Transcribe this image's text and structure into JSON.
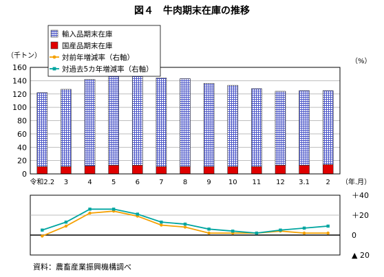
{
  "chart_data": {
    "type": "bar",
    "title": "図４　牛肉期末在庫の推移",
    "left_unit": "（千トン）",
    "right_unit": "（%）",
    "x_unit": "（年.月）",
    "categories": [
      "令和2.2",
      "3",
      "4",
      "5",
      "6",
      "7",
      "8",
      "9",
      "10",
      "11",
      "12",
      "3.1",
      "2"
    ],
    "ylim": [
      0,
      160
    ],
    "y_ticks": [
      "0",
      "20",
      "40",
      "60",
      "80",
      "100",
      "120",
      "140",
      "160"
    ],
    "y_tick_values": [
      0,
      20,
      40,
      60,
      80,
      100,
      120,
      140,
      160
    ],
    "bar_series": [
      {
        "name": "輸入品期末在庫",
        "values": [
          111,
          116,
          130,
          134,
          134,
          133,
          132,
          125,
          122,
          117,
          111,
          112,
          111
        ],
        "color": "#4a55c8"
      },
      {
        "name": "国産品期末在庫",
        "values": [
          11,
          11,
          12,
          13,
          13,
          11,
          11,
          11,
          11,
          11,
          13,
          13,
          14
        ],
        "color": "#e00000"
      }
    ],
    "rate_ylim": [
      -20,
      40
    ],
    "rate_ticks": [
      "＋40",
      "＋20",
      "0",
      "▲ 20"
    ],
    "rate_tick_values": [
      40,
      20,
      0,
      -20
    ],
    "line_series": [
      {
        "name": "対前年増減率（右軸）",
        "values": [
          -1,
          9,
          22,
          24,
          19,
          10,
          8,
          2,
          2,
          2,
          4,
          2,
          2
        ],
        "color": "#f5a000"
      },
      {
        "name": "対過去5カ年増減率（右軸）",
        "values": [
          5,
          13,
          26,
          26,
          21,
          13,
          11,
          6,
          4,
          2,
          5,
          7,
          9
        ],
        "color": "#00a5a0"
      }
    ],
    "grid": true,
    "legend_position": "top-left"
  },
  "footer": {
    "source": "資料：農畜産業振興機構調べ"
  }
}
